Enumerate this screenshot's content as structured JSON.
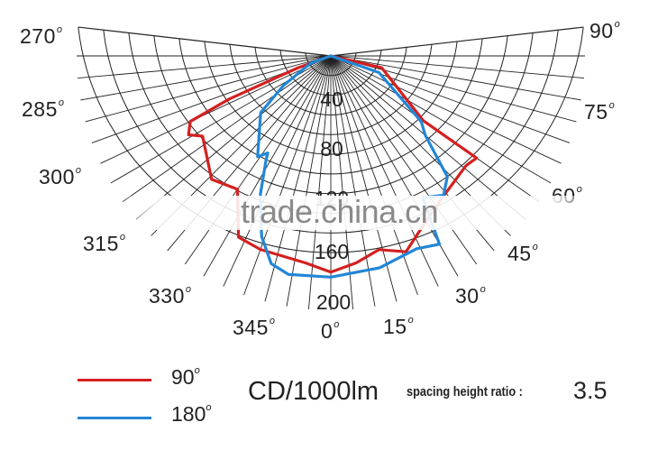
{
  "chart_data": {
    "type": "polar-line",
    "title": "",
    "unit": "CD/1000lm",
    "radial_axis": {
      "min": 0,
      "max": 200,
      "ring_step": 20,
      "labels": [
        "40",
        "80",
        "120",
        "160",
        "200"
      ]
    },
    "angular_axis": {
      "zero_direction": "down",
      "spoke_step_deg": 5,
      "labels_left": [
        "270°",
        "285°",
        "300°",
        "315°",
        "330°",
        "345°"
      ],
      "labels_right": [
        "0°",
        "15°",
        "30°",
        "45°",
        "60°",
        "75°",
        "90°"
      ]
    },
    "grid": true,
    "legend_position": "bottom-left",
    "series": [
      {
        "name": "90°",
        "color": "#d42020",
        "points": [
          [
            -90,
            0
          ],
          [
            -70,
            28
          ],
          [
            -67,
            87
          ],
          [
            -65,
            122
          ],
          [
            -61,
            128
          ],
          [
            -58,
            119
          ],
          [
            -44,
            135
          ],
          [
            -35,
            128
          ],
          [
            -27,
            160
          ],
          [
            -20,
            162
          ],
          [
            -7,
            164
          ],
          [
            0,
            170
          ],
          [
            7,
            164
          ],
          [
            14,
            157
          ],
          [
            21,
            165
          ],
          [
            30,
            150
          ],
          [
            38,
            142
          ],
          [
            51,
            137
          ],
          [
            55,
            140
          ],
          [
            55,
            89
          ],
          [
            77,
            41
          ],
          [
            90,
            0
          ]
        ]
      },
      {
        "name": "180°",
        "color": "#2286d6",
        "points": [
          [
            -90,
            0
          ],
          [
            -70,
            17
          ],
          [
            -58,
            44
          ],
          [
            -51,
            71
          ],
          [
            -36,
            98
          ],
          [
            -33,
            91
          ],
          [
            -32,
            96
          ],
          [
            -27,
            122
          ],
          [
            -21,
            152
          ],
          [
            -16,
            170
          ],
          [
            -11,
            175
          ],
          [
            0,
            174
          ],
          [
            13,
            171
          ],
          [
            24,
            166
          ],
          [
            30,
            171
          ],
          [
            33,
            133
          ],
          [
            39,
            141
          ],
          [
            44,
            132
          ],
          [
            50,
            97
          ],
          [
            54,
            88
          ],
          [
            71,
            40
          ],
          [
            90,
            0
          ]
        ]
      }
    ],
    "annotation": {
      "spacing_height_ratio_label": "spacing height ratio :",
      "spacing_height_ratio_value": "3.5"
    }
  },
  "labels": {
    "a270": "270",
    "a285": "285",
    "a300": "300",
    "a315": "315",
    "a330": "330",
    "a345": "345",
    "a0": "0",
    "a15": "15",
    "a30": "30",
    "a45": "45",
    "a60": "60",
    "a75": "75",
    "a90": "90",
    "degree_mark": "o",
    "r40": "40",
    "r80": "80",
    "r120": "120",
    "r160": "160",
    "r200": "200"
  },
  "legend": {
    "items": [
      {
        "label": "90",
        "color": "#d42020"
      },
      {
        "label": "180",
        "color": "#2286d6"
      }
    ]
  },
  "footer": {
    "unit": "CD/1000lm",
    "ratio_label": "spacing height ratio :",
    "ratio_value": "3.5"
  },
  "watermark": "trade.china.cn"
}
